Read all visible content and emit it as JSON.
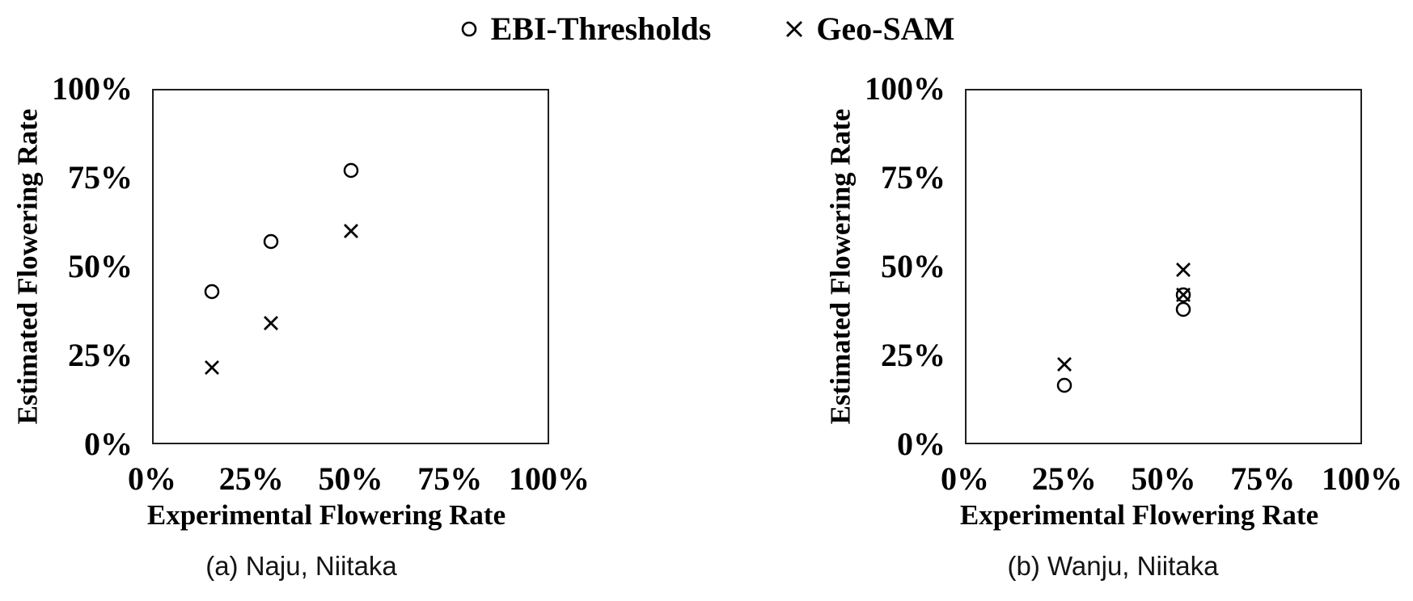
{
  "figure": {
    "background": "#ffffff"
  },
  "colors": {
    "marker": "#000000",
    "frame": "#1f1f1f",
    "text": "#000000",
    "background": "#ffffff"
  },
  "legend": {
    "position": "top-center",
    "items": [
      {
        "label": "EBI-Thresholds",
        "marker": "circle-icon"
      },
      {
        "label": "Geo-SAM",
        "marker": "x-icon"
      }
    ]
  },
  "chart_data": [
    {
      "type": "scatter",
      "title": "(a) Naju, Niitaka",
      "xlabel": "Experimental Flowering Rate",
      "ylabel": "Estimated Flowering Rate",
      "xlim": [
        0,
        100
      ],
      "ylim": [
        0,
        100
      ],
      "x_ticks": [
        "0%",
        "25%",
        "50%",
        "75%",
        "100%"
      ],
      "y_ticks": [
        "0%",
        "25%",
        "50%",
        "75%",
        "100%"
      ],
      "grid": false,
      "series": [
        {
          "name": "EBI-Thresholds",
          "marker": "circle",
          "points": [
            [
              15,
              43
            ],
            [
              30,
              57
            ],
            [
              50,
              77
            ]
          ]
        },
        {
          "name": "Geo-SAM",
          "marker": "x",
          "points": [
            [
              15,
              21.5
            ],
            [
              30,
              34
            ],
            [
              50,
              60
            ]
          ]
        }
      ]
    },
    {
      "type": "scatter",
      "title": "(b) Wanju, Niitaka",
      "xlabel": "Experimental Flowering Rate",
      "ylabel": "Estimated Flowering Rate",
      "xlim": [
        0,
        100
      ],
      "ylim": [
        0,
        100
      ],
      "x_ticks": [
        "0%",
        "25%",
        "50%",
        "75%",
        "100%"
      ],
      "y_ticks": [
        "0%",
        "25%",
        "50%",
        "75%",
        "100%"
      ],
      "grid": false,
      "series": [
        {
          "name": "EBI-Thresholds",
          "marker": "circle",
          "points": [
            [
              25,
              16.5
            ],
            [
              55,
              38
            ],
            [
              55,
              42
            ]
          ]
        },
        {
          "name": "Geo-SAM",
          "marker": "x",
          "points": [
            [
              25,
              22.5
            ],
            [
              55,
              42
            ],
            [
              55,
              49
            ]
          ]
        }
      ]
    }
  ]
}
